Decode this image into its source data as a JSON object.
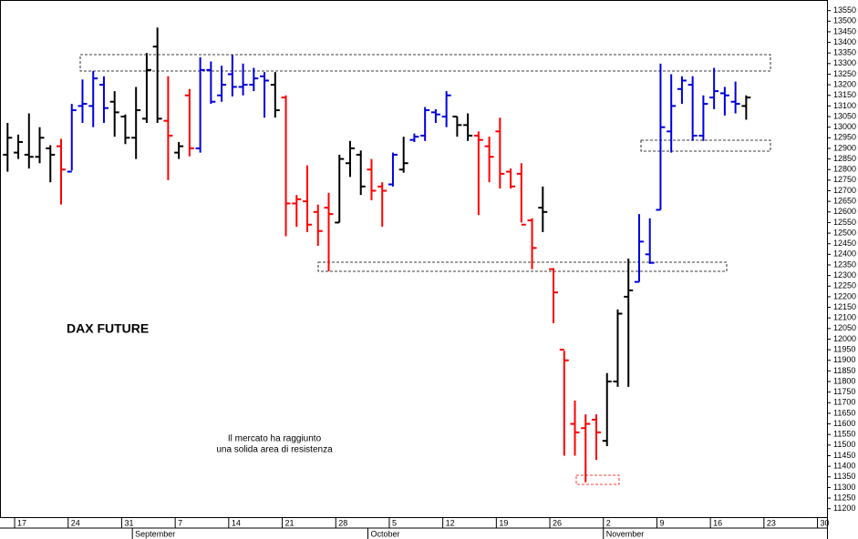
{
  "chart_data": {
    "type": "ohlc",
    "title": "DAX FUTURE",
    "annotations": [
      "Il mercato ha raggiunto",
      "una solida area di resistenza"
    ],
    "categories": [
      null,
      "17",
      null,
      null,
      null,
      null,
      "24",
      null,
      null,
      null,
      null,
      "31",
      null,
      null,
      null,
      null,
      "7",
      null,
      null,
      null,
      null,
      "14",
      null,
      null,
      null,
      null,
      "21",
      null,
      null,
      null,
      null,
      "28",
      null,
      null,
      null,
      null,
      "5",
      null,
      null,
      null,
      null,
      "12",
      null,
      null,
      null,
      null,
      "19",
      null,
      null,
      null,
      null,
      "26",
      null,
      null,
      null,
      null,
      "2",
      null,
      null,
      null,
      null,
      "9",
      null,
      null,
      null,
      null,
      "16",
      null,
      null,
      null,
      null,
      "23",
      null,
      null,
      null,
      null,
      "30"
    ],
    "months": [
      "September",
      "October",
      "November"
    ],
    "open": [
      12870,
      12880,
      12870,
      12860,
      12900,
      12910,
      12790,
      13100,
      13100,
      13200,
      13120,
      13050,
      12950,
      13040,
      13380,
      13030,
      12880,
      13150,
      12900,
      13270,
      13150,
      13250,
      13190,
      13200,
      13240,
      13200,
      13140,
      12640,
      12650,
      12600,
      12620,
      12550,
      12830,
      12870,
      12800,
      12720,
      12730,
      12800,
      12940,
      12960,
      13070,
      13050,
      13050,
      13010,
      12960,
      12910,
      12980,
      12790,
      12780,
      12560,
      12620,
      12330,
      11950,
      11600,
      11580,
      11620,
      11520,
      11800,
      12200,
      12270,
      12400,
      12610,
      12980,
      13180,
      13200,
      12960,
      13140,
      13160,
      13120,
      13100,
      null,
      null,
      null,
      null,
      null,
      null,
      null
    ],
    "high": [
      13020,
      12965,
      13065,
      13000,
      12915,
      12945,
      13110,
      13225,
      13265,
      13240,
      13170,
      13060,
      13190,
      13350,
      13470,
      13240,
      12930,
      13180,
      13330,
      13310,
      13290,
      13340,
      13300,
      13280,
      13260,
      13260,
      13150,
      12680,
      12820,
      12635,
      12690,
      12870,
      12935,
      12890,
      12850,
      12740,
      12880,
      12955,
      12970,
      13095,
      13085,
      13170,
      13050,
      13065,
      12980,
      12955,
      13045,
      12805,
      12830,
      12570,
      12720,
      12335,
      11945,
      11710,
      11645,
      11645,
      11840,
      12140,
      12380,
      12590,
      12570,
      13300,
      13250,
      13240,
      13240,
      13150,
      13280,
      13190,
      13215,
      13150,
      null,
      null,
      null,
      null,
      null,
      null,
      null
    ],
    "low": [
      12790,
      12850,
      12805,
      12830,
      12740,
      12635,
      12795,
      13020,
      13000,
      13020,
      12955,
      12920,
      12850,
      13020,
      13020,
      12750,
      12850,
      12862,
      12880,
      13110,
      13120,
      13145,
      13150,
      13170,
      13045,
      13045,
      12485,
      12530,
      12505,
      12440,
      12320,
      12550,
      12765,
      12680,
      12655,
      12530,
      12720,
      12785,
      12930,
      12935,
      13020,
      13000,
      12955,
      12935,
      12585,
      12740,
      12710,
      12710,
      12550,
      12330,
      12505,
      12075,
      11450,
      11450,
      11325,
      11430,
      11495,
      11775,
      11775,
      12270,
      12355,
      12610,
      12880,
      13110,
      12935,
      12935,
      13085,
      13055,
      13065,
      13035,
      null,
      null,
      null,
      null,
      null,
      null,
      null
    ],
    "close": [
      12950,
      12930,
      12860,
      12950,
      12870,
      12800,
      13080,
      13110,
      13230,
      13090,
      13070,
      12950,
      13080,
      13270,
      13040,
      12960,
      12910,
      12900,
      13270,
      13120,
      13200,
      13190,
      13200,
      13230,
      13220,
      13080,
      12640,
      12660,
      12540,
      12510,
      12590,
      12850,
      12900,
      12720,
      12700,
      12700,
      12870,
      12830,
      12955,
      13080,
      13060,
      13150,
      13010,
      12960,
      12940,
      12860,
      12780,
      12720,
      12540,
      12430,
      12600,
      12220,
      11900,
      11560,
      11600,
      11560,
      11800,
      12120,
      12230,
      12460,
      12360,
      13000,
      13100,
      13220,
      12960,
      13110,
      13170,
      13150,
      13110,
      13140,
      null,
      null,
      null,
      null,
      null,
      null,
      null
    ],
    "colors": [
      "#000000",
      "#000000",
      "#000000",
      "#000000",
      "#000000",
      "#ff0000",
      "#0000dd",
      "#0000dd",
      "#0000dd",
      "#0000dd",
      "#000000",
      "#000000",
      "#000000",
      "#000000",
      "#000000",
      "#ff0000",
      "#000000",
      "#ff0000",
      "#0000dd",
      "#0000dd",
      "#0000dd",
      "#0000dd",
      "#0000dd",
      "#0000dd",
      "#0000dd",
      "#000000",
      "#ff0000",
      "#ff0000",
      "#ff0000",
      "#ff0000",
      "#ff0000",
      "#000000",
      "#000000",
      "#000000",
      "#ff0000",
      "#ff0000",
      "#0000dd",
      "#000000",
      "#0000dd",
      "#0000dd",
      "#0000dd",
      "#0000dd",
      "#000000",
      "#000000",
      "#ff0000",
      "#ff0000",
      "#ff0000",
      "#ff0000",
      "#ff0000",
      "#ff0000",
      "#000000",
      "#ff0000",
      "#ff0000",
      "#ff0000",
      "#ff0000",
      "#ff0000",
      "#000000",
      "#000000",
      "#000000",
      "#0000dd",
      "#0000dd",
      "#0000dd",
      "#0000dd",
      "#0000dd",
      "#0000dd",
      "#0000dd",
      "#0000dd",
      "#0000dd",
      "#0000dd",
      "#000000",
      null,
      null,
      null,
      null,
      null,
      null,
      null
    ],
    "ylim": [
      11160,
      13600
    ],
    "yticks": [
      11200,
      11250,
      11300,
      11350,
      11400,
      11450,
      11500,
      11550,
      11600,
      11650,
      11700,
      11750,
      11800,
      11850,
      11900,
      11950,
      12000,
      12050,
      12100,
      12150,
      12200,
      12250,
      12300,
      12350,
      12400,
      12450,
      12500,
      12550,
      12600,
      12650,
      12700,
      12750,
      12800,
      12850,
      12900,
      12950,
      13000,
      13050,
      13100,
      13150,
      13200,
      13250,
      13300,
      13350,
      13400,
      13450,
      13500,
      13550
    ]
  }
}
